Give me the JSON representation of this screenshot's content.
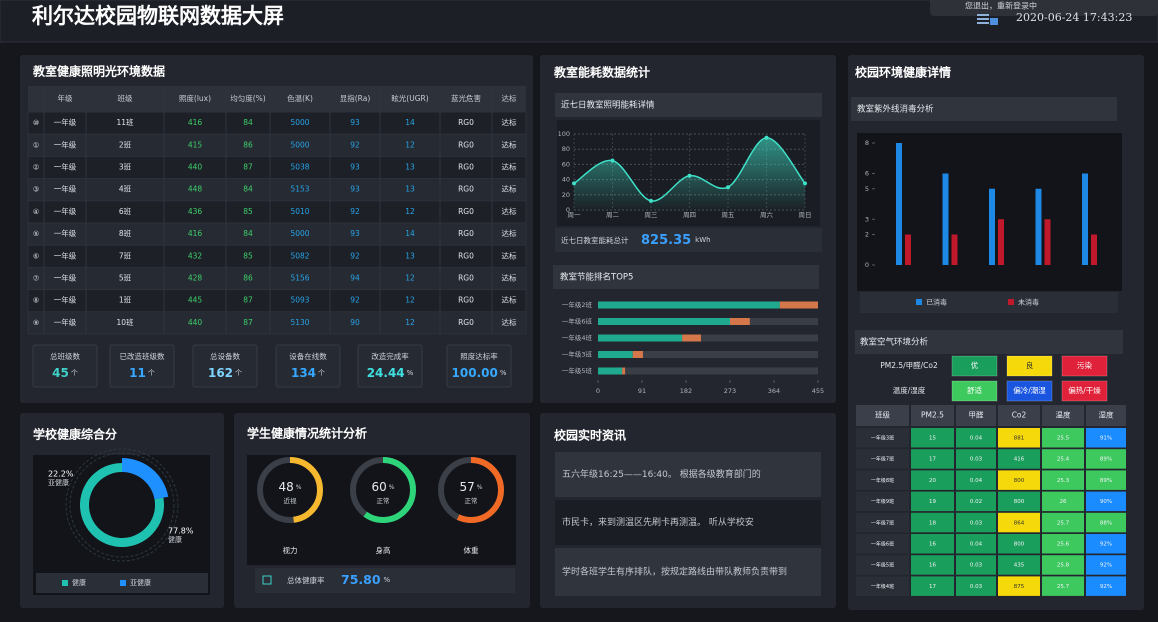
{
  "header": {
    "title": "利尔达校园物联网数据大屏",
    "notice": "您退出，重新登录中",
    "datetime": "2020-06-24 17:43:23"
  },
  "lighting": {
    "title": "教室健康照明光环境数据",
    "columns": [
      "年级",
      "班级",
      "照度(lux)",
      "均匀度(%)",
      "色温(K)",
      "显指(Ra)",
      "眩光(UGR)",
      "蓝光危害",
      "达标"
    ],
    "rows": [
      [
        "⑩",
        "一年级",
        "11班",
        416,
        84,
        5000,
        93,
        14,
        "RG0",
        "达标"
      ],
      [
        "①",
        "一年级",
        "2班",
        415,
        86,
        5000,
        92,
        12,
        "RG0",
        "达标"
      ],
      [
        "②",
        "一年级",
        "3班",
        440,
        87,
        5038,
        93,
        13,
        "RG0",
        "达标"
      ],
      [
        "③",
        "一年级",
        "4班",
        448,
        84,
        5153,
        93,
        13,
        "RG0",
        "达标"
      ],
      [
        "④",
        "一年级",
        "6班",
        436,
        85,
        5010,
        92,
        12,
        "RG0",
        "达标"
      ],
      [
        "⑤",
        "一年级",
        "8班",
        416,
        84,
        5000,
        93,
        14,
        "RG0",
        "达标"
      ],
      [
        "⑥",
        "一年级",
        "7班",
        432,
        85,
        5082,
        92,
        13,
        "RG0",
        "达标"
      ],
      [
        "⑦",
        "一年级",
        "5班",
        428,
        86,
        5156,
        94,
        12,
        "RG0",
        "达标"
      ],
      [
        "⑧",
        "一年级",
        "1班",
        445,
        87,
        5093,
        92,
        12,
        "RG0",
        "达标"
      ],
      [
        "⑨",
        "一年级",
        "10班",
        440,
        87,
        5130,
        90,
        12,
        "RG0",
        "达标"
      ]
    ],
    "stats": [
      {
        "label": "总班级数",
        "value": 45,
        "unit": "个",
        "color": "#3ed0c8"
      },
      {
        "label": "已改造班级数",
        "value": 11,
        "unit": "个",
        "color": "#36a8ff"
      },
      {
        "label": "总设备数",
        "value": 162,
        "unit": "个",
        "color": "#7fd3ff"
      },
      {
        "label": "设备在线数",
        "value": 134,
        "unit": "个",
        "color": "#36a8ff"
      },
      {
        "label": "改造完成率",
        "value": 24.44,
        "unit": "%",
        "color": "#3ee0e0"
      },
      {
        "label": "照度达标率",
        "value": 100,
        "value_label": "100.00",
        "unit": "%",
        "color": "#36a8ff"
      }
    ]
  },
  "energy": {
    "title": "教室能耗数据统计",
    "weekly": {
      "type": "line",
      "title": "近七日教室照明能耗详情",
      "categories": [
        "周一",
        "周二",
        "周三",
        "周四",
        "周五",
        "周六",
        "周日"
      ],
      "values": [
        35,
        65,
        12,
        45,
        30,
        95,
        35
      ],
      "ylim": [
        0,
        100
      ],
      "yticks": [
        0,
        20,
        40,
        60,
        80,
        100
      ],
      "color": "#3fe0c8",
      "total_label": "近七日教室能耗总计",
      "total": 825.35,
      "total_unit": "kWh"
    },
    "top5": {
      "type": "bar",
      "orientation": "horizontal",
      "stacked": true,
      "title": "教室节能排名TOP5",
      "categories": [
        "一年级2班",
        "一年级6班",
        "一年级4班",
        "一年级3班",
        "一年级5班"
      ],
      "series": [
        {
          "color": "#1fa98f",
          "values": [
            376,
            273,
            174,
            72,
            50
          ]
        },
        {
          "color": "#d4774a",
          "values": [
            79,
            41,
            39,
            21,
            6
          ]
        }
      ],
      "xlim": [
        0,
        455
      ],
      "xticks": [
        0,
        91,
        182,
        273,
        364,
        455
      ]
    }
  },
  "environment": {
    "title": "校园环境健康详情",
    "uv": {
      "type": "bar",
      "title": "教室紫外线消毒分析",
      "categories": [
        null,
        null,
        null,
        null,
        null
      ],
      "series": [
        {
          "name": "已消毒",
          "color": "#1e88e5",
          "values": [
            8,
            6,
            5,
            5,
            6
          ]
        },
        {
          "name": "未消毒",
          "color": "#c0192b",
          "values": [
            2,
            2,
            3,
            3,
            2
          ]
        }
      ],
      "ylim": [
        0,
        8
      ],
      "yticks": [
        0,
        2,
        3,
        5,
        6,
        8
      ]
    },
    "air": {
      "title": "教室空气环境分析",
      "legend": [
        {
          "label": "PM2.5/甲醛/Co2",
          "levels": [
            {
              "text": "优",
              "color": "#1a9e5c"
            },
            {
              "text": "良",
              "color": "#f5d90a"
            },
            {
              "text": "污染",
              "color": "#e0213a"
            }
          ]
        },
        {
          "label": "温度/湿度",
          "levels": [
            {
              "text": "舒适",
              "color": "#3ec95f"
            },
            {
              "text": "偏冷/潮湿",
              "color": "#1a55e0"
            },
            {
              "text": "偏热/干燥",
              "color": "#e0213a"
            }
          ]
        }
      ],
      "columns": [
        "班级",
        "PM2.5",
        "甲醛",
        "Co2",
        "温度",
        "湿度"
      ],
      "rows": [
        [
          "一年级3班",
          15,
          0.04,
          881,
          25.5,
          "91%"
        ],
        [
          "一年级7班",
          17,
          0.03,
          416,
          25.4,
          "89%"
        ],
        [
          "一年级8班",
          20,
          0.04,
          800,
          25.3,
          "89%"
        ],
        [
          "一年级9班",
          19,
          0.02,
          800,
          26,
          "90%"
        ],
        [
          "一年级7班",
          18,
          0.03,
          864,
          25.7,
          "88%"
        ],
        [
          "一年级6班",
          16,
          0.04,
          800,
          25.6,
          "92%"
        ],
        [
          "一年级5班",
          16,
          0.03,
          435,
          25.8,
          "92%"
        ],
        [
          "一年级4班",
          17,
          0.03,
          875,
          25.7,
          "92%"
        ]
      ],
      "row_colors": [
        [
          "#1a9e5c",
          "#1a9e5c",
          "#f5d90a",
          "#3ec95f",
          "#1a8cff"
        ],
        [
          "#1a9e5c",
          "#1a9e5c",
          "#1a9e5c",
          "#3ec95f",
          "#3ec95f"
        ],
        [
          "#1a9e5c",
          "#1a9e5c",
          "#f5d90a",
          "#3ec95f",
          "#3ec95f"
        ],
        [
          "#1a9e5c",
          "#1a9e5c",
          "#1a9e5c",
          "#3ec95f",
          "#1a8cff"
        ],
        [
          "#1a9e5c",
          "#1a9e5c",
          "#f5d90a",
          "#3ec95f",
          "#3ec95f"
        ],
        [
          "#1a9e5c",
          "#1a9e5c",
          "#1a9e5c",
          "#3ec95f",
          "#1a8cff"
        ],
        [
          "#1a9e5c",
          "#1a9e5c",
          "#1a9e5c",
          "#3ec95f",
          "#1a8cff"
        ],
        [
          "#1a9e5c",
          "#1a9e5c",
          "#f5d90a",
          "#3ec95f",
          "#1a8cff"
        ]
      ]
    }
  },
  "health_score": {
    "type": "pie",
    "title": "学校健康综合分",
    "categories": [
      "健康",
      "亚健康"
    ],
    "values": [
      77.8,
      22.2
    ],
    "value_labels": [
      "77.8%",
      "22.2%"
    ],
    "colors": [
      "#1fc2b0",
      "#1e90ff"
    ]
  },
  "student_health": {
    "title": "学生健康情况统计分析",
    "unit": "%",
    "gauges": [
      {
        "name": "视力",
        "value": 48,
        "status": "近视",
        "color": "#f5b82e"
      },
      {
        "name": "身高",
        "value": 60,
        "status": "正常",
        "color": "#2ed47a"
      },
      {
        "name": "体重",
        "value": 57,
        "status": "正常",
        "color": "#f06a25"
      }
    ],
    "total_label": "总体健康率",
    "total": 75.8,
    "total_value_label": "75.80"
  },
  "news": {
    "title": "校园实时资讯",
    "items": [
      "五六年级16:25——16:40。        根据各级教育部门的",
      "市民卡，来到测温区先刷卡再测温。        听从学校安",
      "学时各班学生有序排队，按规定路线由带队教师负责带到"
    ]
  }
}
